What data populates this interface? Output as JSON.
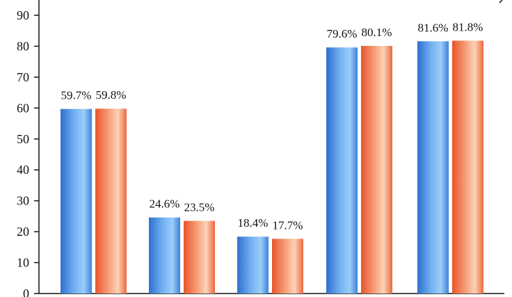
{
  "chart_data": {
    "type": "bar",
    "title": "",
    "xlabel": "",
    "ylabel": "",
    "ylim": [
      0,
      90
    ],
    "yticks": [
      0,
      10,
      20,
      30,
      40,
      50,
      60,
      70,
      80,
      90
    ],
    "grid": false,
    "legend": "none",
    "categories": [
      "",
      "",
      "",
      "",
      ""
    ],
    "series": [
      {
        "values": [
          59.7,
          24.6,
          18.4,
          79.6,
          81.6
        ],
        "labels": [
          "59.7%",
          "24.6%",
          "18.4%",
          "79.6%",
          "81.6%"
        ],
        "color": "#4a90e2"
      },
      {
        "values": [
          59.8,
          23.5,
          17.7,
          80.1,
          81.8
        ],
        "labels": [
          "59.8%",
          "23.5%",
          "17.7%",
          "80.1%",
          "81.8%"
        ],
        "color": "#f2734a"
      }
    ]
  }
}
